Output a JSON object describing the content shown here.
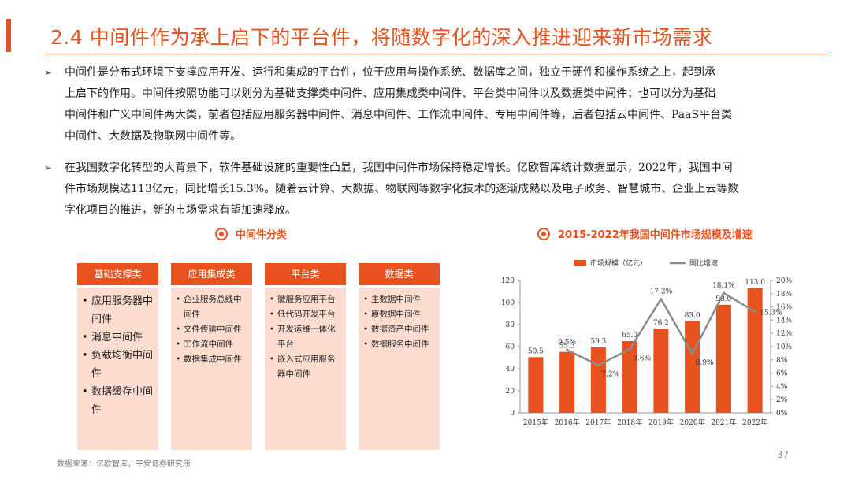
{
  "title": "2.4 中间件作为承上启下的平台件，将随数字化的深入推进迎来新市场需求",
  "bullets": [
    {
      "marker": "➢",
      "lines": [
        "中间件是分布式环境下支撑应用开发、运行和集成的平台件，位于应用与操作系统、数据库之间，独立于硬件和操作系统之上，起到承",
        "上启下的作用。中间件按照功能可以划分为基础支撑类中间件、应用集成类中间件、平台类中间件以及数据类中间件；也可以分为基础",
        "中间件和广义中间件两大类，前者包括应用服务器中间件、消息中间件、工作流中间件、专用中间件等，后者包括云中间件、PaaS平台类",
        "中间件、大数据及物联网中间件等。"
      ]
    },
    {
      "marker": "➢",
      "lines": [
        "在我国数字化转型的大背景下，软件基础设施的重要性凸显，我国中间件市场保持稳定增长。亿欧智库统计数据显示，2022年，我国中间",
        "件市场规模达113亿元，同比增长15.3%。随着云计算、大数据、物联网等数字化技术的逐渐成熟以及电子政务、智慧城市、企业上云等数",
        "字化项目的推进，新的市场需求有望加速释放。"
      ]
    }
  ],
  "left_section": {
    "heading": "中间件分类",
    "columns": [
      {
        "header": "基础支撑类",
        "items": [
          "应用服务器中间件",
          "消息中间件",
          "负载均衡中间件",
          "数据缓存中间件"
        ]
      },
      {
        "header": "应用集成类",
        "items": [
          "企业服务总线中间件",
          "文件传输中间件",
          "工作流中间件",
          "数据集成中间件"
        ]
      },
      {
        "header": "平台类",
        "items": [
          "微服务应用平台",
          "低代码开发平台",
          "开发运维一体化平台",
          "嵌入式应用服务器中间件"
        ]
      },
      {
        "header": "数据类",
        "items": [
          "主数据中间件",
          "原数据中间件",
          "数据资产中间件",
          "数据服务中间件"
        ]
      }
    ]
  },
  "right_section": {
    "heading": "2015-2022年我国中间件市场规模及增速"
  },
  "chart_data": {
    "type": "bar",
    "categories": [
      "2015年",
      "2016年",
      "2017年",
      "2018年",
      "2019年",
      "2020年",
      "2021年",
      "2022年"
    ],
    "series": [
      {
        "name": "市场规模（亿元）",
        "type": "bar",
        "axis": "left",
        "values": [
          50.5,
          55.3,
          59.3,
          65.0,
          76.2,
          83.0,
          98.0,
          113.0
        ],
        "labels": [
          "50.5",
          "55.3",
          "59.3",
          "65.0",
          "76.2",
          "83.0",
          "98.0",
          "113.0"
        ],
        "color": "#e8521e"
      },
      {
        "name": "同比增速",
        "type": "line",
        "axis": "right",
        "values": [
          null,
          9.5,
          7.2,
          9.6,
          17.2,
          8.9,
          18.1,
          15.3
        ],
        "labels": [
          "",
          "9.5%",
          "7.2%",
          "9.6%",
          "17.2%",
          "8.9%",
          "18.1%",
          "15.3%"
        ],
        "color": "#8c8c8c"
      }
    ],
    "y_left": {
      "min": 0,
      "max": 120,
      "ticks": [
        0,
        20,
        40,
        60,
        80,
        100,
        120
      ],
      "tick_labels": [
        "0",
        "20",
        "40",
        "60",
        "80",
        "100",
        "120"
      ]
    },
    "y_right": {
      "min": 0,
      "max": 20,
      "ticks": [
        0,
        2,
        4,
        6,
        8,
        10,
        12,
        14,
        16,
        18,
        20
      ],
      "tick_labels": [
        "0%",
        "2%",
        "4%",
        "6%",
        "8%",
        "10%",
        "12%",
        "14%",
        "16%",
        "18%",
        "20%"
      ]
    },
    "legend_position": "top",
    "grid": false
  },
  "footer": {
    "source": "数据来源：亿欧智库，平安证券研究所",
    "page_number": "37"
  },
  "colors": {
    "accent": "#e8521e",
    "light_fill": "#fbdccf",
    "line": "#8c8c8c"
  }
}
